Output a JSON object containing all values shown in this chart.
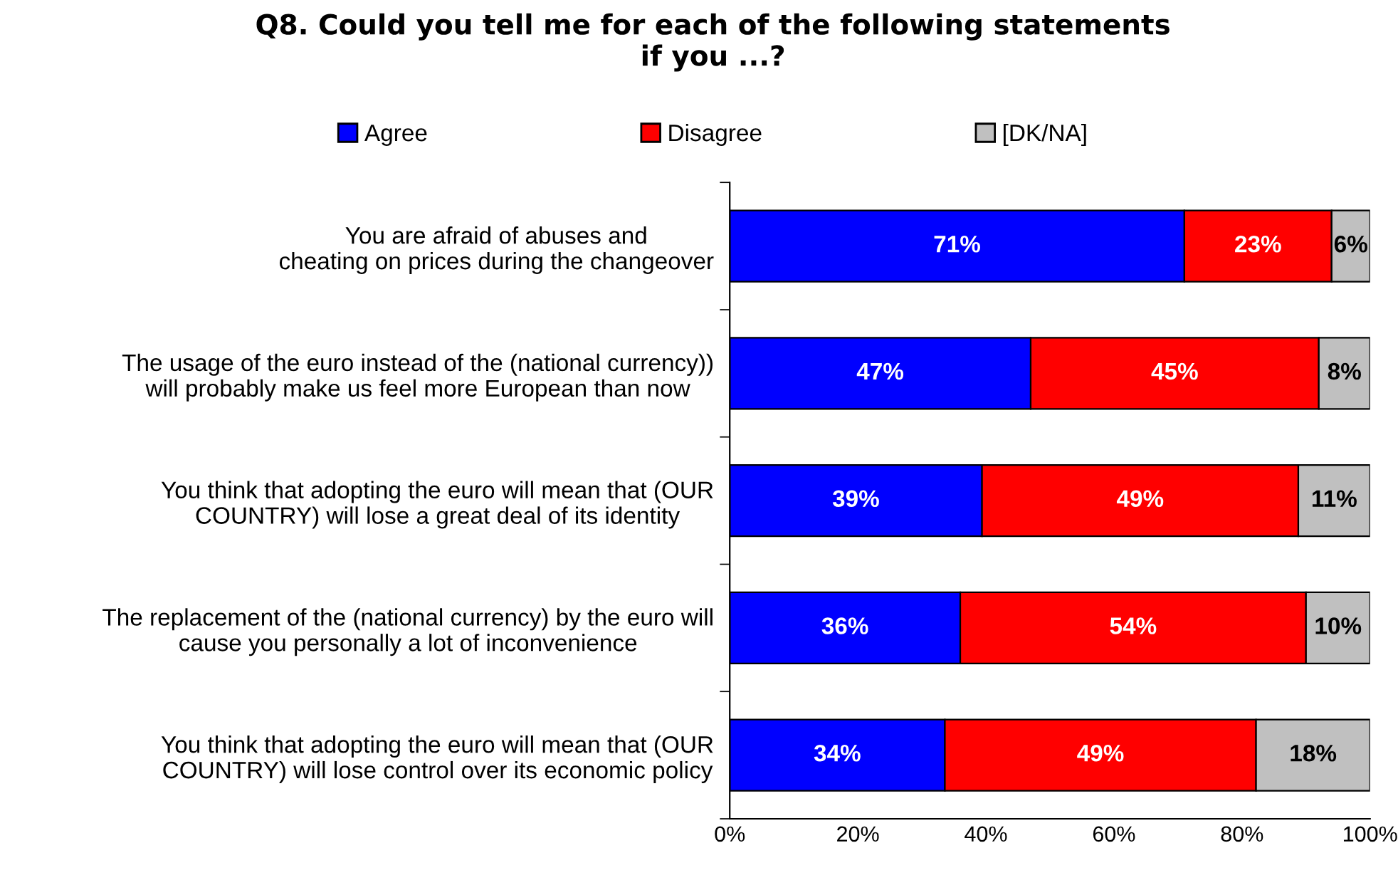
{
  "chart_data": {
    "type": "bar",
    "orientation": "horizontal",
    "stacked": true,
    "title": "Q8. Could you tell me for each of the following statements\nif you ...?",
    "categories": [
      "You are afraid of abuses and\ncheating on prices during the changeover",
      "The usage of the euro instead of the (national currency))\nwill probably make us feel more European than now",
      "You think that adopting the euro will mean that (OUR\nCOUNTRY) will lose a great deal of its identity",
      "The replacement of the (national currency) by the euro will\ncause you personally a lot of inconvenience",
      "You think that adopting the euro will mean that (OUR\nCOUNTRY) will lose control over its economic policy"
    ],
    "series": [
      {
        "name": "Agree",
        "color": "#0000ff",
        "values": [
          71,
          47,
          39.4,
          36,
          33.6
        ],
        "value_labels": [
          "71%",
          "47%",
          "39%",
          "36%",
          "34%"
        ]
      },
      {
        "name": "Disagree",
        "color": "#ff0000",
        "values": [
          23,
          45,
          49.4,
          54,
          48.6
        ],
        "value_labels": [
          "23%",
          "45%",
          "49%",
          "54%",
          "49%"
        ]
      },
      {
        "name": "[DK/NA]",
        "color": "#c0c0c0",
        "values": [
          6,
          8,
          11.2,
          10,
          17.8
        ],
        "value_labels": [
          "6%",
          "8%",
          "11%",
          "10%",
          "18%"
        ]
      }
    ],
    "xlim": [
      0,
      100
    ],
    "xticks": [
      {
        "value": 0,
        "label": "0%"
      },
      {
        "value": 20,
        "label": "20%"
      },
      {
        "value": 40,
        "label": "40%"
      },
      {
        "value": 60,
        "label": "60%"
      },
      {
        "value": 80,
        "label": "80%"
      },
      {
        "value": 100,
        "label": "100%"
      }
    ],
    "legend": "top",
    "grid": false
  }
}
